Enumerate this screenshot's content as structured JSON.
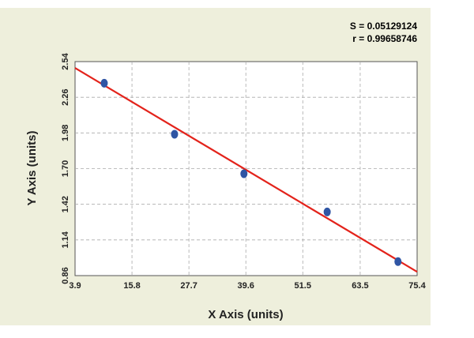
{
  "stats": {
    "s_label": "S = 0.05129124",
    "r_label": "r = 0.99658746"
  },
  "chart_data": {
    "type": "scatter",
    "title": "",
    "xlabel": "X Axis (units)",
    "ylabel": "Y Axis (units)",
    "xlim": [
      3.9,
      75.4
    ],
    "ylim": [
      0.86,
      2.54
    ],
    "x_ticks": [
      "3.9",
      "15.8",
      "27.7",
      "39.6",
      "51.5",
      "63.5",
      "75.4"
    ],
    "y_ticks": [
      "0.86",
      "1.14",
      "1.42",
      "1.70",
      "1.98",
      "2.26",
      "2.54"
    ],
    "grid": true,
    "points": [
      {
        "x": 10.0,
        "y": 2.37
      },
      {
        "x": 24.7,
        "y": 1.97
      },
      {
        "x": 39.2,
        "y": 1.66
      },
      {
        "x": 56.6,
        "y": 1.36
      },
      {
        "x": 71.4,
        "y": 0.97
      }
    ],
    "fit_line": {
      "x": [
        3.9,
        75.4
      ],
      "y": [
        2.49,
        0.89
      ]
    },
    "colors": {
      "points": "#2f55a4",
      "fit_line": "#e3231b",
      "panel": "#eeefdc",
      "plot_bg": "#ffffff"
    }
  }
}
